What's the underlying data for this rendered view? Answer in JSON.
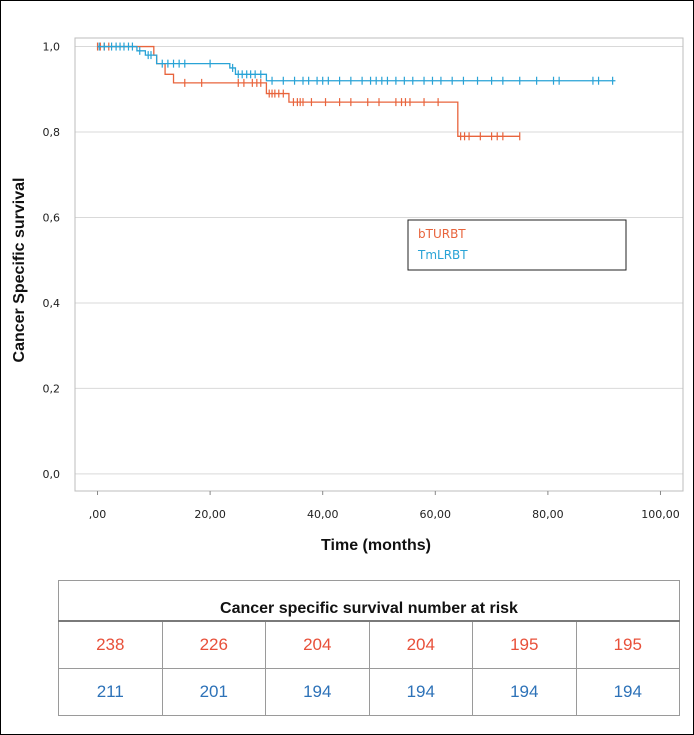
{
  "colors": {
    "bturbt": "#e8643c",
    "tmlrbt": "#29a3d6",
    "grid": "#d9d9d9",
    "table_orange": "#e8503a",
    "table_blue": "#2d72b8"
  },
  "chart_data": {
    "type": "line",
    "subtype": "kaplan-meier",
    "title": "",
    "xlabel": "Time (months)",
    "ylabel": "Cancer Specific survival",
    "xlim": [
      -4,
      104
    ],
    "ylim": [
      -0.04,
      1.02
    ],
    "x_ticks": [
      0,
      20,
      40,
      60,
      80,
      100
    ],
    "x_tick_labels": [
      ",00",
      "20,00",
      "40,00",
      "60,00",
      "80,00",
      "100,00"
    ],
    "y_ticks": [
      0,
      0.2,
      0.4,
      0.6,
      0.8,
      1.0
    ],
    "y_tick_labels": [
      "0,0",
      "0,2",
      "0,4",
      "0,6",
      "0,8",
      "1,0"
    ],
    "grid": true,
    "legend": {
      "position": "right-middle",
      "entries": [
        "bTURBT",
        "TmLRBT"
      ]
    },
    "series": [
      {
        "name": "bTURBT",
        "color": "#e8643c",
        "steps": [
          [
            0,
            1.0
          ],
          [
            10,
            0.98
          ],
          [
            10.5,
            0.96
          ],
          [
            12,
            0.935
          ],
          [
            13.5,
            0.915
          ],
          [
            30,
            0.89
          ],
          [
            34,
            0.87
          ],
          [
            64,
            0.79
          ],
          [
            75,
            0.79
          ]
        ],
        "censored": [
          [
            0,
            1.0
          ],
          [
            0.5,
            1.0
          ],
          [
            1.2,
            1.0
          ],
          [
            2,
            1.0
          ],
          [
            15.5,
            0.915
          ],
          [
            18.5,
            0.915
          ],
          [
            25,
            0.915
          ],
          [
            26,
            0.915
          ],
          [
            27.5,
            0.915
          ],
          [
            28.3,
            0.915
          ],
          [
            29,
            0.915
          ],
          [
            30.5,
            0.89
          ],
          [
            31,
            0.89
          ],
          [
            31.5,
            0.89
          ],
          [
            32.2,
            0.89
          ],
          [
            33,
            0.89
          ],
          [
            34.8,
            0.87
          ],
          [
            35.5,
            0.87
          ],
          [
            36,
            0.87
          ],
          [
            36.5,
            0.87
          ],
          [
            38,
            0.87
          ],
          [
            40.5,
            0.87
          ],
          [
            43,
            0.87
          ],
          [
            45,
            0.87
          ],
          [
            48,
            0.87
          ],
          [
            50,
            0.87
          ],
          [
            53,
            0.87
          ],
          [
            54,
            0.87
          ],
          [
            54.7,
            0.87
          ],
          [
            55.5,
            0.87
          ],
          [
            58,
            0.87
          ],
          [
            60.5,
            0.87
          ],
          [
            64.5,
            0.79
          ],
          [
            65.2,
            0.79
          ],
          [
            66,
            0.79
          ],
          [
            68,
            0.79
          ],
          [
            70,
            0.79
          ],
          [
            71,
            0.79
          ],
          [
            72,
            0.79
          ],
          [
            75,
            0.79
          ]
        ]
      },
      {
        "name": "TmLRBT",
        "color": "#29a3d6",
        "steps": [
          [
            0,
            1.0
          ],
          [
            7,
            0.99
          ],
          [
            8.5,
            0.98
          ],
          [
            10.5,
            0.96
          ],
          [
            23.5,
            0.95
          ],
          [
            24.5,
            0.935
          ],
          [
            30,
            0.92
          ],
          [
            92,
            0.92
          ]
        ],
        "censored": [
          [
            0.3,
            1.0
          ],
          [
            1.2,
            1.0
          ],
          [
            2.5,
            1.0
          ],
          [
            3.3,
            1.0
          ],
          [
            4,
            1.0
          ],
          [
            4.7,
            1.0
          ],
          [
            5.5,
            1.0
          ],
          [
            6.2,
            1.0
          ],
          [
            7.5,
            0.99
          ],
          [
            9,
            0.98
          ],
          [
            9.5,
            0.98
          ],
          [
            11.5,
            0.96
          ],
          [
            12.5,
            0.96
          ],
          [
            13.5,
            0.96
          ],
          [
            14.5,
            0.96
          ],
          [
            15.5,
            0.96
          ],
          [
            20,
            0.96
          ],
          [
            24,
            0.95
          ],
          [
            25,
            0.935
          ],
          [
            25.7,
            0.935
          ],
          [
            26.5,
            0.935
          ],
          [
            27.2,
            0.935
          ],
          [
            28,
            0.935
          ],
          [
            29,
            0.935
          ],
          [
            31,
            0.92
          ],
          [
            33,
            0.92
          ],
          [
            35,
            0.92
          ],
          [
            36.5,
            0.92
          ],
          [
            37.5,
            0.92
          ],
          [
            39,
            0.92
          ],
          [
            40,
            0.92
          ],
          [
            41,
            0.92
          ],
          [
            43,
            0.92
          ],
          [
            45,
            0.92
          ],
          [
            47,
            0.92
          ],
          [
            48.5,
            0.92
          ],
          [
            49.5,
            0.92
          ],
          [
            50.5,
            0.92
          ],
          [
            51.5,
            0.92
          ],
          [
            53,
            0.92
          ],
          [
            54.5,
            0.92
          ],
          [
            56,
            0.92
          ],
          [
            58,
            0.92
          ],
          [
            59.5,
            0.92
          ],
          [
            61,
            0.92
          ],
          [
            63,
            0.92
          ],
          [
            65,
            0.92
          ],
          [
            67.5,
            0.92
          ],
          [
            70,
            0.92
          ],
          [
            72,
            0.92
          ],
          [
            75,
            0.92
          ],
          [
            78,
            0.92
          ],
          [
            81,
            0.92
          ],
          [
            82,
            0.92
          ],
          [
            88,
            0.92
          ],
          [
            89,
            0.92
          ],
          [
            91.5,
            0.92
          ]
        ]
      }
    ]
  },
  "risk_table": {
    "title": "Cancer specific survival number at risk",
    "rows": [
      {
        "group": "bTURBT",
        "values": [
          "238",
          "226",
          "204",
          "204",
          "195",
          "195"
        ]
      },
      {
        "group": "TmLRBT",
        "values": [
          "211",
          "201",
          "194",
          "194",
          "194",
          "194"
        ]
      }
    ]
  }
}
